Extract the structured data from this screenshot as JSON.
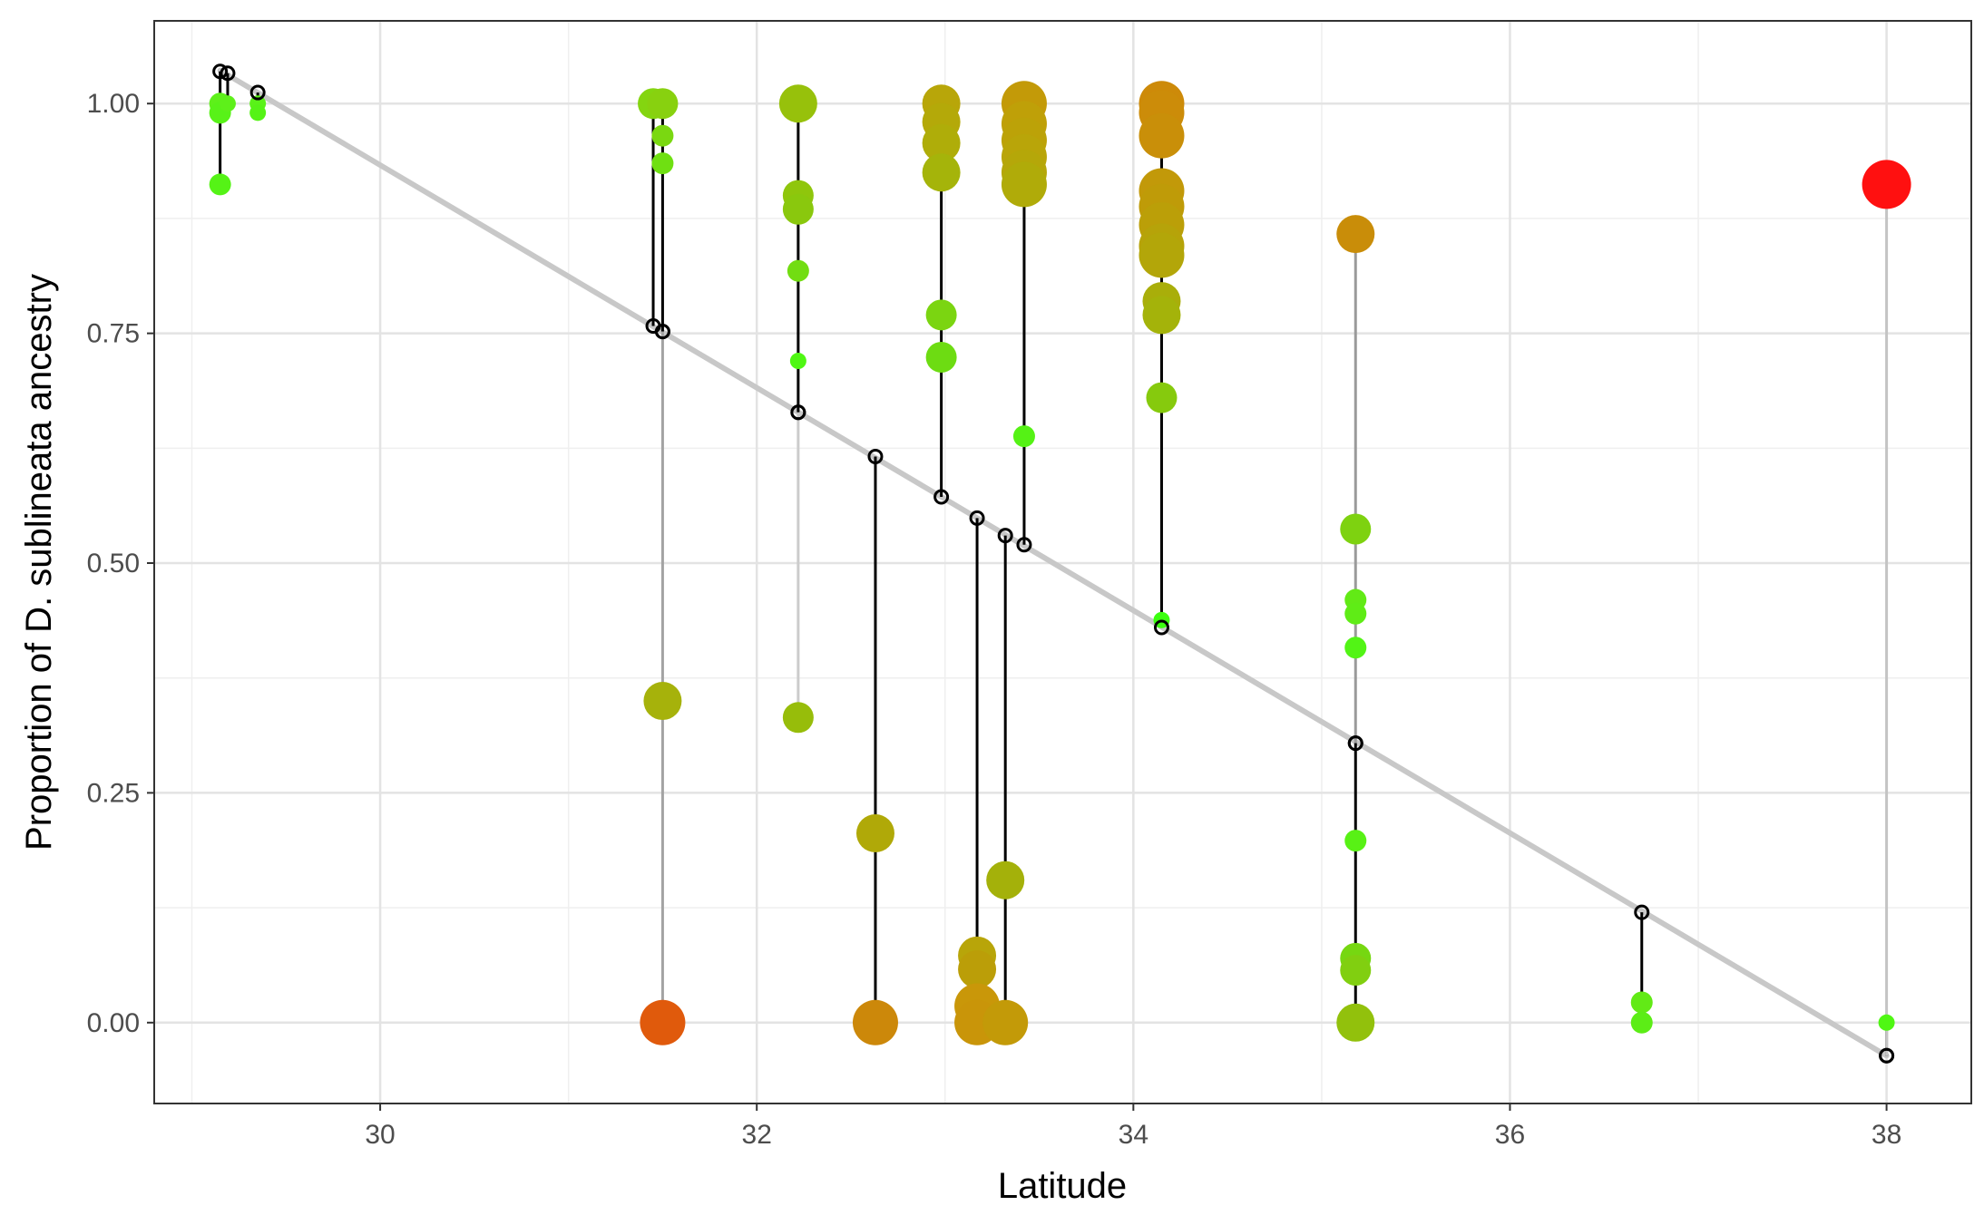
{
  "chart_data": {
    "type": "scatter",
    "title": "",
    "xlabel": "Latitude",
    "ylabel": "Proportion of D. sublineata ancestry",
    "xlim": [
      28.8,
      38.45
    ],
    "ylim": [
      -0.088,
      1.09
    ],
    "xticks": [
      30,
      32,
      34,
      36,
      38
    ],
    "xtick_labels": [
      "30",
      "32",
      "34",
      "36",
      "38"
    ],
    "yticks": [
      0,
      0.25,
      0.5,
      0.75,
      1
    ],
    "ytick_labels": [
      "0.00",
      "0.25",
      "0.50",
      "0.75",
      "1.00"
    ],
    "grid": true,
    "legend": "none",
    "colors": {
      "regression_line": "#c8c8c8",
      "grid_major": "#e3e3e3",
      "grid_minor": "#efefef",
      "panel_border": "#333333",
      "prediction_marker": "#000000"
    },
    "regression_line": {
      "x": [
        29.15,
        38.0
      ],
      "y": [
        1.036,
        -0.036
      ]
    },
    "populations": [
      {
        "x": 29.15,
        "predicted": 1.035,
        "connector": "#000000",
        "points": [
          {
            "y": 1.0,
            "size": 1,
            "color": "#5ef01a"
          },
          {
            "y": 0.99,
            "size": 1,
            "color": "#58f218"
          },
          {
            "y": 0.912,
            "size": 1,
            "color": "#55f316"
          }
        ]
      },
      {
        "x": 29.19,
        "predicted": 1.033,
        "connector": "#000000",
        "points": [
          {
            "y": 1.0,
            "size": 0,
            "color": "#5ef01a"
          }
        ]
      },
      {
        "x": 29.35,
        "predicted": 1.012,
        "connector": "#000000",
        "points": [
          {
            "y": 1.0,
            "size": 0,
            "color": "#5af219"
          },
          {
            "y": 0.99,
            "size": 0,
            "color": "#55f316"
          }
        ]
      },
      {
        "x": 31.45,
        "predicted": 0.758,
        "connector": "#000000",
        "points": [
          {
            "y": 1.0,
            "size": 2,
            "color": "#84d510"
          }
        ]
      },
      {
        "x": 31.5,
        "predicted": 0.752,
        "connector": "#000000",
        "points": [
          {
            "y": 1.0,
            "size": 2,
            "color": "#88d10f"
          },
          {
            "y": 0.965,
            "size": 1,
            "color": "#7ad811"
          },
          {
            "y": 0.935,
            "size": 1,
            "color": "#6fe012"
          }
        ]
      },
      {
        "x": 31.5,
        "predicted": 0.752,
        "connector": "#a3a3a3",
        "points": [
          {
            "y": 0.35,
            "size": 3,
            "color": "#a6b20b"
          },
          {
            "y": 0.0,
            "size": 4,
            "color": "#e05a0c"
          }
        ]
      },
      {
        "x": 32.22,
        "predicted": 0.664,
        "connector": "#000000",
        "points": [
          {
            "y": 1.0,
            "size": 3,
            "color": "#97c10b"
          },
          {
            "y": 0.9,
            "size": 2,
            "color": "#8fc60c"
          },
          {
            "y": 0.885,
            "size": 2,
            "color": "#8ac80d"
          },
          {
            "y": 0.818,
            "size": 1,
            "color": "#72dd12"
          },
          {
            "y": 0.72,
            "size": 0,
            "color": "#4ff713"
          }
        ]
      },
      {
        "x": 32.22,
        "predicted": 0.664,
        "connector": "#cccccc",
        "points": [
          {
            "y": 0.332,
            "size": 2,
            "color": "#97bd0a"
          }
        ]
      },
      {
        "x": 32.63,
        "predicted": 0.616,
        "connector": "#000000",
        "points": [
          {
            "y": 0.206,
            "size": 3,
            "color": "#b0a908"
          },
          {
            "y": 0.0,
            "size": 4,
            "color": "#cc880a"
          }
        ]
      },
      {
        "x": 32.98,
        "predicted": 0.572,
        "connector": "#000000",
        "points": [
          {
            "y": 1.0,
            "size": 3,
            "color": "#b8a609"
          },
          {
            "y": 0.98,
            "size": 3,
            "color": "#b4a909"
          },
          {
            "y": 0.957,
            "size": 3,
            "color": "#afad09"
          },
          {
            "y": 0.925,
            "size": 3,
            "color": "#a5b40a"
          },
          {
            "y": 0.77,
            "size": 2,
            "color": "#7bd511"
          },
          {
            "y": 0.724,
            "size": 2,
            "color": "#6ddc12"
          }
        ]
      },
      {
        "x": 33.17,
        "predicted": 0.549,
        "connector": "#000000",
        "points": [
          {
            "y": 0.073,
            "size": 3,
            "color": "#b8a509"
          },
          {
            "y": 0.058,
            "size": 3,
            "color": "#bb9e08"
          },
          {
            "y": 0.018,
            "size": 4,
            "color": "#c99709"
          },
          {
            "y": 0.0,
            "size": 4,
            "color": "#c99509"
          }
        ]
      },
      {
        "x": 33.32,
        "predicted": 0.53,
        "connector": "#000000",
        "points": [
          {
            "y": 0.155,
            "size": 3,
            "color": "#a4b10a"
          },
          {
            "y": 0.0,
            "size": 4,
            "color": "#c39a08"
          }
        ]
      },
      {
        "x": 33.42,
        "predicted": 0.52,
        "connector": "#000000",
        "points": [
          {
            "y": 1.0,
            "size": 4,
            "color": "#c39a08"
          },
          {
            "y": 0.978,
            "size": 4,
            "color": "#bfa008"
          },
          {
            "y": 0.96,
            "size": 4,
            "color": "#bca208"
          },
          {
            "y": 0.942,
            "size": 4,
            "color": "#b9a509"
          },
          {
            "y": 0.925,
            "size": 4,
            "color": "#b5a709"
          },
          {
            "y": 0.912,
            "size": 4,
            "color": "#b0ab09"
          },
          {
            "y": 0.638,
            "size": 1,
            "color": "#55f215"
          }
        ]
      },
      {
        "x": 34.15,
        "predicted": 0.43,
        "connector": "#000000",
        "points": [
          {
            "y": 1.0,
            "size": 4,
            "color": "#cd8a09"
          },
          {
            "y": 0.99,
            "size": 4,
            "color": "#cc8c09"
          },
          {
            "y": 0.965,
            "size": 4,
            "color": "#c98f09"
          },
          {
            "y": 0.905,
            "size": 4,
            "color": "#c29909"
          },
          {
            "y": 0.888,
            "size": 4,
            "color": "#bf9b08"
          },
          {
            "y": 0.868,
            "size": 4,
            "color": "#bb9f08"
          },
          {
            "y": 0.845,
            "size": 4,
            "color": "#b6a309"
          },
          {
            "y": 0.835,
            "size": 4,
            "color": "#b3a609"
          },
          {
            "y": 0.785,
            "size": 3,
            "color": "#a9ae0a"
          },
          {
            "y": 0.77,
            "size": 3,
            "color": "#a4b30a"
          },
          {
            "y": 0.68,
            "size": 2,
            "color": "#86ca0d"
          },
          {
            "y": 0.438,
            "size": 0,
            "color": "#3cff10"
          }
        ]
      },
      {
        "x": 35.18,
        "predicted": 0.304,
        "connector": "#9a9a9a",
        "points": [
          {
            "y": 0.858,
            "size": 3,
            "color": "#c98d09"
          },
          {
            "y": 0.537,
            "size": 2,
            "color": "#7ed210"
          },
          {
            "y": 0.46,
            "size": 1,
            "color": "#62ea16"
          },
          {
            "y": 0.445,
            "size": 1,
            "color": "#5fec16"
          },
          {
            "y": 0.408,
            "size": 1,
            "color": "#52f415"
          }
        ]
      },
      {
        "x": 35.18,
        "predicted": 0.304,
        "connector": "#000000",
        "points": [
          {
            "y": 0.198,
            "size": 1,
            "color": "#58f115"
          },
          {
            "y": 0.07,
            "size": 2,
            "color": "#76d711"
          },
          {
            "y": 0.057,
            "size": 2,
            "color": "#81cf10"
          },
          {
            "y": 0.0,
            "size": 3,
            "color": "#92c10c"
          }
        ]
      },
      {
        "x": 36.7,
        "predicted": 0.12,
        "connector": "#000000",
        "points": [
          {
            "y": 0.022,
            "size": 1,
            "color": "#62ea16"
          },
          {
            "y": 0.0,
            "size": 1,
            "color": "#5ced16"
          }
        ]
      },
      {
        "x": 38.0,
        "predicted": -0.036,
        "connector": "#000000",
        "points": [
          {
            "y": 0.0,
            "size": 0,
            "color": "#4ff713"
          }
        ]
      },
      {
        "x": 38.0,
        "predicted": -0.036,
        "connector": "#c4c4c4",
        "points": [
          {
            "y": 0.912,
            "size": 5,
            "color": "#ff1010"
          }
        ]
      }
    ]
  }
}
